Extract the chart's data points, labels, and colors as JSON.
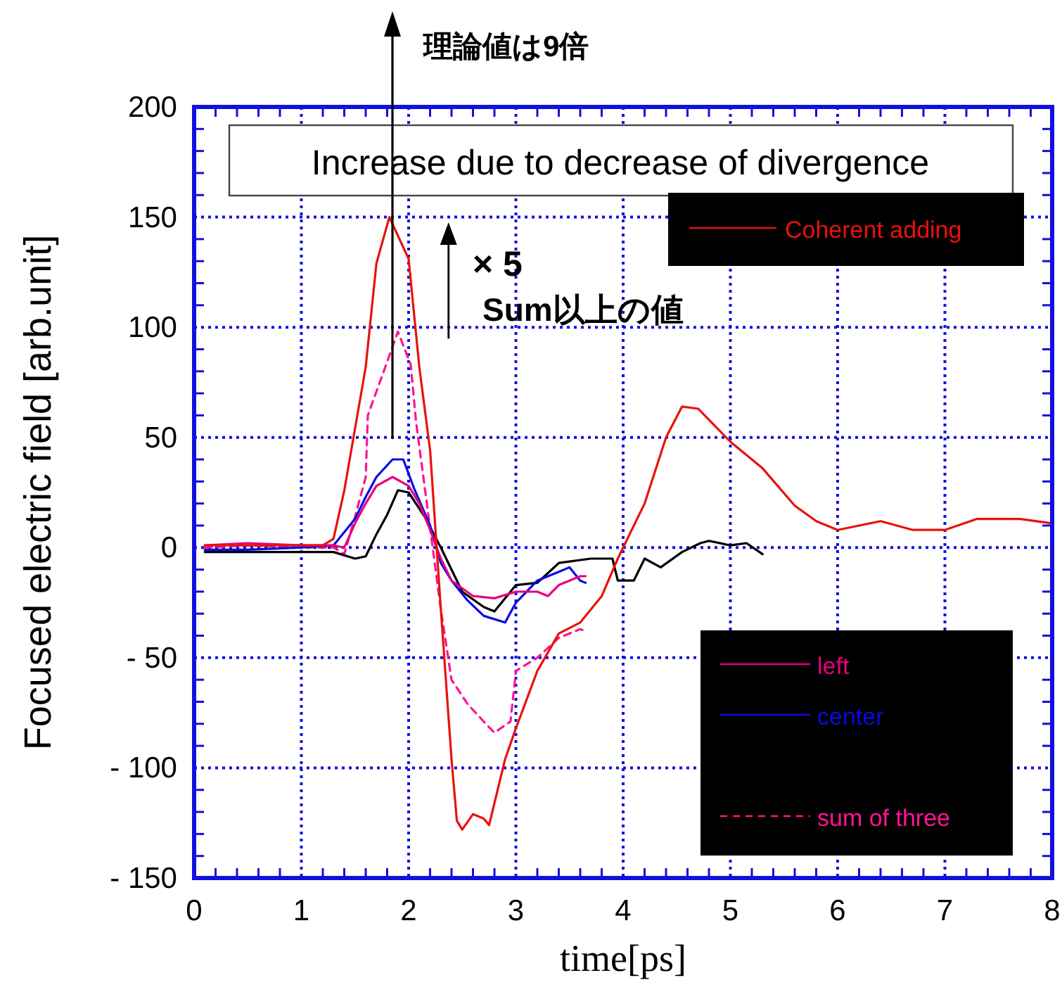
{
  "chart_data": {
    "type": "line",
    "xlabel": "time[ps]",
    "ylabel": "Focused electric field [arb.unit]",
    "xlim": [
      0,
      8
    ],
    "ylim": [
      -150,
      200
    ],
    "xticks": [
      0,
      1,
      2,
      3,
      4,
      5,
      6,
      7,
      8
    ],
    "yticks": [
      {
        "value": -150,
        "label": "- 150"
      },
      {
        "value": -100,
        "label": "- 100"
      },
      {
        "value": -50,
        "label": "- 50"
      },
      0,
      50,
      100,
      150,
      200
    ],
    "grid": true,
    "legend": "right",
    "marker": "none",
    "annotations": [
      "Increase due to decrease of divergence",
      "理論値は9倍",
      "× 5",
      {
        "text": "Sum以上の値",
        "x": 1.9,
        "y": 98
      }
    ],
    "series": [
      {
        "name": "Coherent adding",
        "color": "#e8120c",
        "line_style": "solid",
        "x": [
          0.1,
          0.5,
          1.0,
          1.2,
          1.3,
          1.4,
          1.6,
          1.7,
          1.82,
          2.0,
          2.1,
          2.2,
          2.3,
          2.4,
          2.45,
          2.5,
          2.6,
          2.7,
          2.75,
          2.9,
          3.0,
          3.2,
          3.4,
          3.6,
          3.8,
          3.95,
          4.0,
          4.2,
          4.4,
          4.55,
          4.7,
          5.0,
          5.3,
          5.6,
          5.8,
          6.0,
          6.4,
          6.7,
          7.0,
          7.3,
          7.7,
          8.0
        ],
        "values": [
          1,
          1,
          1,
          1,
          4,
          26,
          82,
          129,
          150,
          131,
          82,
          44,
          -28,
          -96,
          -124,
          -128,
          -121,
          -123,
          -126,
          -96,
          -82,
          -56,
          -39,
          -34,
          -22,
          -5,
          0,
          20,
          50,
          64,
          63,
          48,
          36,
          19,
          12,
          8,
          12,
          8,
          8,
          13,
          13,
          11
        ]
      },
      {
        "name": "left",
        "color": "#e6007e",
        "line_style": "solid",
        "x": [
          0.1,
          0.5,
          1.0,
          1.3,
          1.4,
          1.5,
          1.6,
          1.7,
          1.85,
          2.0,
          2.1,
          2.2,
          2.3,
          2.4,
          2.6,
          2.8,
          3.0,
          3.2,
          3.3,
          3.4,
          3.6,
          3.65
        ],
        "values": [
          1,
          2,
          1,
          1,
          0,
          11,
          20,
          28,
          32,
          28,
          20,
          8,
          -5,
          -15,
          -22,
          -23,
          -20,
          -20,
          -22,
          -17,
          -13,
          -13
        ]
      },
      {
        "name": "center",
        "color": "#0a0ae6",
        "line_style": "solid",
        "x": [
          0.1,
          0.5,
          1.0,
          1.3,
          1.5,
          1.6,
          1.7,
          1.85,
          1.95,
          2.05,
          2.2,
          2.3,
          2.4,
          2.55,
          2.7,
          2.9,
          3.0,
          3.2,
          3.4,
          3.5,
          3.6,
          3.65
        ],
        "values": [
          -1,
          -1,
          0,
          1,
          13,
          23,
          32,
          40,
          40,
          27,
          10,
          -7,
          -15,
          -24,
          -31,
          -34,
          -25,
          -15,
          -11,
          -9,
          -15,
          -16
        ]
      },
      {
        "color": "#000000",
        "line_style": "solid",
        "x": [
          0.1,
          0.5,
          1.0,
          1.3,
          1.5,
          1.6,
          1.7,
          1.8,
          1.9,
          2.0,
          2.15,
          2.3,
          2.5,
          2.7,
          2.8,
          3.0,
          3.2,
          3.4,
          3.7,
          3.8,
          3.9,
          3.95,
          4.1,
          4.2,
          4.35,
          4.55,
          4.72,
          4.8,
          5.0,
          5.15,
          5.3
        ],
        "values": [
          -2,
          -2,
          -2,
          -2,
          -5,
          -4,
          6,
          15,
          26,
          25,
          14,
          0,
          -20,
          -27,
          -29,
          -17,
          -16,
          -7,
          -5,
          -5,
          -5,
          -15,
          -15,
          -5,
          -9,
          -2,
          2,
          3,
          1,
          2,
          -3
        ]
      },
      {
        "name": "sum of three",
        "color": "#ff1493",
        "line_style": "dashed",
        "x": [
          0.1,
          0.5,
          1.0,
          1.3,
          1.4,
          1.5,
          1.6,
          1.62,
          1.79,
          1.9,
          2.02,
          2.07,
          2.3,
          2.4,
          2.55,
          2.7,
          2.8,
          2.95,
          3.0,
          3.2,
          3.4,
          3.6,
          3.65
        ],
        "values": [
          0,
          1,
          0,
          0,
          -3,
          14,
          32,
          60,
          83,
          98,
          83,
          57,
          -28,
          -60,
          -71,
          -79,
          -84,
          -79,
          -56,
          -50,
          -41,
          -37,
          -38
        ]
      }
    ]
  }
}
